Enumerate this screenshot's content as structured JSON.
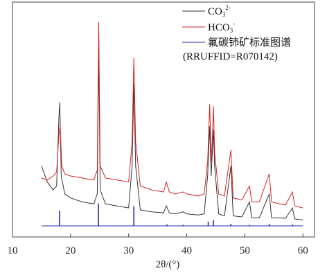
{
  "chart_data": {
    "type": "line",
    "title": "",
    "xlabel": "2θ/(°)",
    "ylabel": "",
    "xlim": [
      10,
      62
    ],
    "x_ticks": [
      "10",
      "20",
      "30",
      "40",
      "50",
      "60"
    ],
    "y_ticks": [],
    "legend_position": "top-right",
    "legend_extra": "(RRUFFID=R070142)",
    "series": [
      {
        "name": "CO3 2-",
        "color": "#333333",
        "points": [
          [
            15,
            0.3
          ],
          [
            16,
            0.22
          ],
          [
            17,
            0.18
          ],
          [
            17.6,
            0.2
          ],
          [
            18,
            0.55
          ],
          [
            18.15,
            0.62
          ],
          [
            18.4,
            0.25
          ],
          [
            19,
            0.16
          ],
          [
            20,
            0.14
          ],
          [
            22,
            0.12
          ],
          [
            24,
            0.11
          ],
          [
            24.6,
            0.16
          ],
          [
            24.85,
            0.88
          ],
          [
            25.1,
            0.18
          ],
          [
            26,
            0.11
          ],
          [
            28,
            0.1
          ],
          [
            30,
            0.09
          ],
          [
            30.6,
            0.3
          ],
          [
            30.9,
            0.71
          ],
          [
            31.2,
            0.3
          ],
          [
            32,
            0.08
          ],
          [
            34,
            0.07
          ],
          [
            36,
            0.065
          ],
          [
            36.5,
            0.1
          ],
          [
            37,
            0.065
          ],
          [
            38,
            0.06
          ],
          [
            39.4,
            0.07
          ],
          [
            40,
            0.06
          ],
          [
            42,
            0.055
          ],
          [
            43,
            0.06
          ],
          [
            43.6,
            0.25
          ],
          [
            43.95,
            0.5
          ],
          [
            44.2,
            0.25
          ],
          [
            44.45,
            0.4
          ],
          [
            44.6,
            0.48
          ],
          [
            44.8,
            0.3
          ],
          [
            45.5,
            0.06
          ],
          [
            46.5,
            0.05
          ],
          [
            47.6,
            0.3
          ],
          [
            48,
            0.05
          ],
          [
            49.5,
            0.045
          ],
          [
            50.8,
            0.12
          ],
          [
            51.2,
            0.04
          ],
          [
            52.5,
            0.04
          ],
          [
            54.2,
            0.16
          ],
          [
            54.6,
            0.04
          ],
          [
            56,
            0.04
          ],
          [
            57,
            0.038
          ],
          [
            58.2,
            0.09
          ],
          [
            58.6,
            0.035
          ],
          [
            60,
            0.03
          ]
        ]
      },
      {
        "name": "HCO3 -",
        "color": "#d62020",
        "points": [
          [
            15,
            0.22
          ],
          [
            16,
            0.21
          ],
          [
            17,
            0.23
          ],
          [
            17.6,
            0.25
          ],
          [
            18,
            0.44
          ],
          [
            18.2,
            0.48
          ],
          [
            18.5,
            0.28
          ],
          [
            19,
            0.24
          ],
          [
            20,
            0.23
          ],
          [
            22,
            0.22
          ],
          [
            24,
            0.21
          ],
          [
            24.6,
            0.26
          ],
          [
            24.85,
            1.0
          ],
          [
            25.1,
            0.28
          ],
          [
            26,
            0.22
          ],
          [
            28,
            0.21
          ],
          [
            30,
            0.2
          ],
          [
            30.6,
            0.4
          ],
          [
            30.9,
            0.82
          ],
          [
            31.2,
            0.4
          ],
          [
            32,
            0.18
          ],
          [
            34,
            0.16
          ],
          [
            36,
            0.15
          ],
          [
            36.5,
            0.2
          ],
          [
            37,
            0.15
          ],
          [
            38,
            0.14
          ],
          [
            39.4,
            0.15
          ],
          [
            40,
            0.14
          ],
          [
            42,
            0.13
          ],
          [
            43,
            0.14
          ],
          [
            43.6,
            0.3
          ],
          [
            43.95,
            0.59
          ],
          [
            44.2,
            0.3
          ],
          [
            44.45,
            0.45
          ],
          [
            44.6,
            0.58
          ],
          [
            44.8,
            0.35
          ],
          [
            45.5,
            0.14
          ],
          [
            46.5,
            0.13
          ],
          [
            47.6,
            0.36
          ],
          [
            48,
            0.12
          ],
          [
            49.5,
            0.11
          ],
          [
            50.8,
            0.18
          ],
          [
            51.2,
            0.1
          ],
          [
            52.5,
            0.1
          ],
          [
            54.2,
            0.24
          ],
          [
            54.6,
            0.1
          ],
          [
            56,
            0.09
          ],
          [
            57,
            0.085
          ],
          [
            58.2,
            0.15
          ],
          [
            58.6,
            0.08
          ],
          [
            60,
            0.07
          ]
        ]
      },
      {
        "name": "氟碳铈矿标准图谱",
        "color": "#2a2aa8",
        "type": "stick",
        "sticks": [
          [
            18.1,
            0.22
          ],
          [
            24.8,
            0.32
          ],
          [
            30.9,
            0.28
          ],
          [
            36.6,
            0.02
          ],
          [
            39.4,
            0.015
          ],
          [
            43.7,
            0.06
          ],
          [
            44.6,
            0.08
          ],
          [
            47.6,
            0.03
          ],
          [
            50.8,
            0.015
          ],
          [
            54.2,
            0.03
          ],
          [
            58.2,
            0.02
          ]
        ]
      }
    ]
  }
}
